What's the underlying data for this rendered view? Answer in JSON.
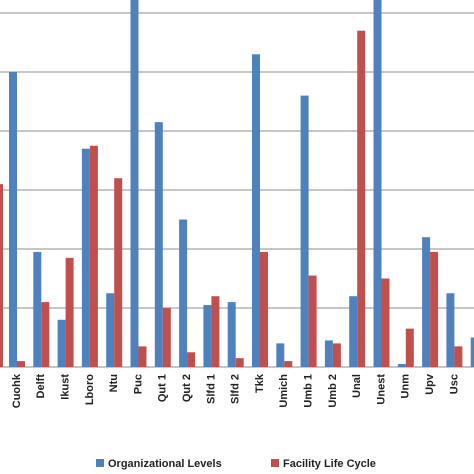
{
  "chart_data": {
    "type": "bar",
    "categories": [
      "Cuohk",
      "Delft",
      "Ikust",
      "Lboro",
      "Ntu",
      "Puc",
      "Qut 1",
      "Qut 2",
      "Slfd 1",
      "Slfd 2",
      "Tkk",
      "Umich",
      "Umb 1",
      "Umb 2",
      "Unal",
      "Unest",
      "Unm",
      "Upv",
      "Usc",
      ""
    ],
    "series": [
      {
        "name": "Organizational Levels",
        "color": "#4f81bd",
        "values": [
          50,
          19.5,
          8,
          37,
          12.5,
          63,
          41.5,
          25,
          10.5,
          11,
          53,
          4,
          46,
          4.5,
          12,
          71.5,
          0.5,
          22,
          12.5,
          5
        ]
      },
      {
        "name": "Facility Life Cycle",
        "color": "#c0504d",
        "values": [
          1,
          11,
          18.5,
          37.5,
          32,
          3.5,
          10,
          2.5,
          12,
          1.5,
          19.5,
          1,
          15.5,
          4,
          57,
          15,
          6.5,
          19.5,
          3.5,
          null
        ]
      }
    ],
    "ylim": [
      0,
      80
    ],
    "gridlines": [
      10,
      20,
      30,
      40,
      50,
      60,
      70
    ],
    "grid": true,
    "legend_position": "bottom",
    "title": "",
    "xlabel": "",
    "ylabel": ""
  }
}
